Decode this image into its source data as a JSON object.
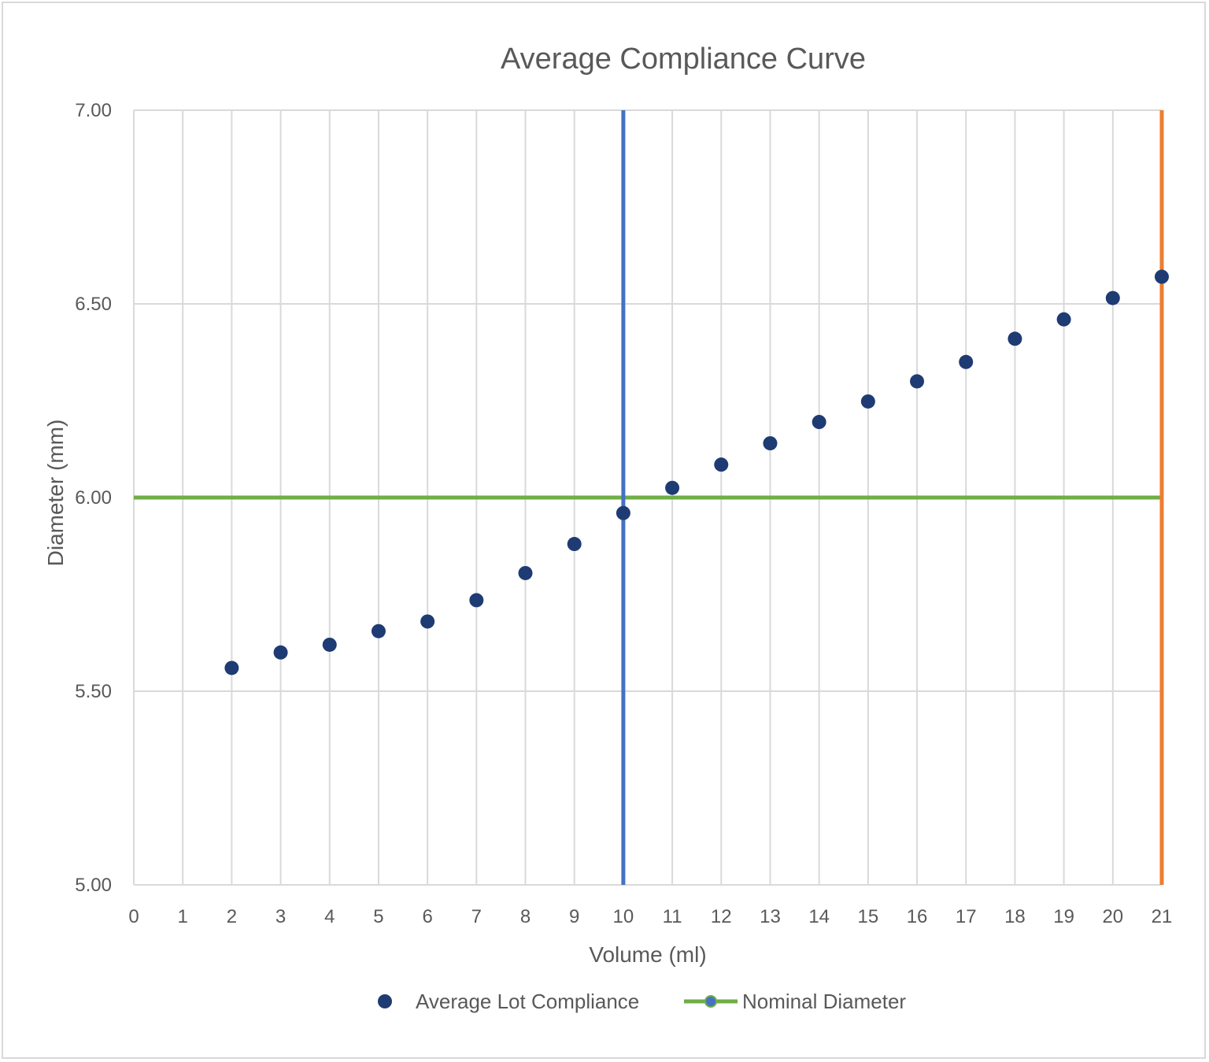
{
  "chart_data": {
    "type": "scatter",
    "title": "Average Compliance Curve",
    "xlabel": "Volume (ml)",
    "ylabel": "Diameter (mm)",
    "xlim": [
      0,
      21
    ],
    "ylim": [
      5.0,
      7.0
    ],
    "x_ticks": [
      "0",
      "1",
      "2",
      "3",
      "4",
      "5",
      "6",
      "7",
      "8",
      "9",
      "10",
      "11",
      "12",
      "13",
      "14",
      "15",
      "16",
      "17",
      "18",
      "19",
      "20",
      "21"
    ],
    "y_ticks": [
      "5.00",
      "5.50",
      "6.00",
      "6.50",
      "7.00"
    ],
    "grid": true,
    "legend_position": "bottom",
    "series": [
      {
        "name": "Average Lot Compliance",
        "kind": "scatter",
        "color": "#1f3b73",
        "x": [
          2,
          3,
          4,
          5,
          6,
          7,
          8,
          9,
          10,
          11,
          12,
          13,
          14,
          15,
          16,
          17,
          18,
          19,
          20,
          21
        ],
        "y": [
          5.56,
          5.6,
          5.62,
          5.655,
          5.68,
          5.735,
          5.805,
          5.88,
          5.96,
          6.025,
          6.085,
          6.14,
          6.195,
          6.248,
          6.3,
          6.35,
          6.41,
          6.46,
          6.515,
          6.57
        ]
      },
      {
        "name": "Nominal Diameter",
        "kind": "hline",
        "color": "#70ad47",
        "y": 6.0
      }
    ],
    "reference_lines": [
      {
        "kind": "vline",
        "x": 10,
        "color": "#4472c4"
      },
      {
        "kind": "vline",
        "x": 21,
        "color": "#ed7d31"
      }
    ]
  }
}
